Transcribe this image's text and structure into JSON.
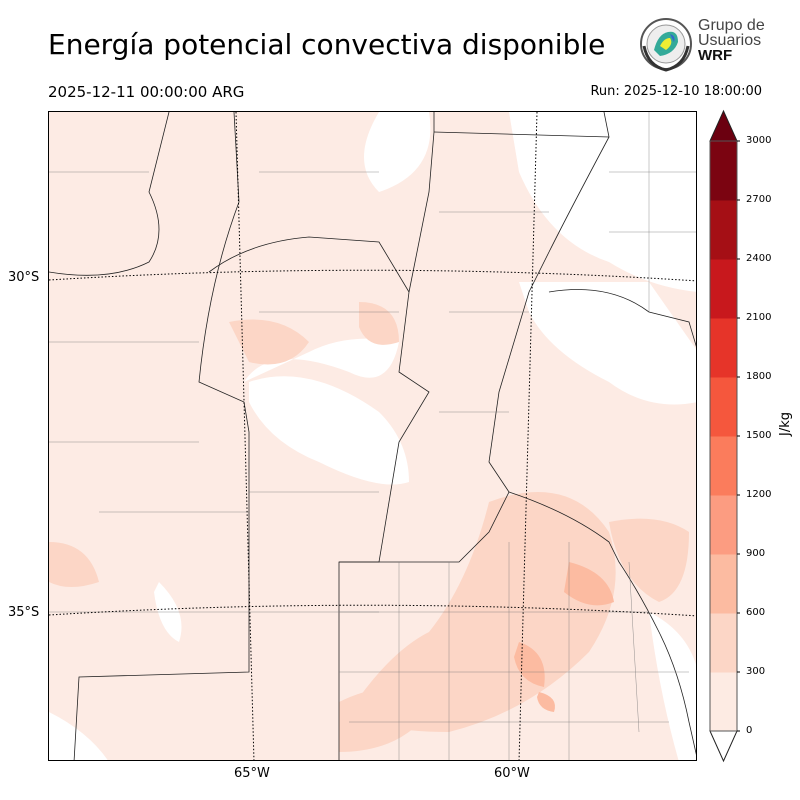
{
  "title": "Energía potencial convectiva disponible",
  "valid_time": "2025-12-11 00:00:00 ARG",
  "run_time": "Run: 2025-12-10 18:00:00",
  "logo": {
    "line1": "Grupo de",
    "line2": "Usuarios",
    "line3": "WRF"
  },
  "map": {
    "lat_labels": [
      "30°S",
      "35°S"
    ],
    "lon_labels": [
      "65°W",
      "60°W"
    ]
  },
  "colorbar": {
    "unit": "J/kg",
    "levels": [
      "0",
      "300",
      "600",
      "900",
      "1200",
      "1500",
      "1800",
      "2100",
      "2400",
      "2700",
      "3000"
    ],
    "colors": [
      "#fdebe3",
      "#fcd6c6",
      "#fcbba1",
      "#fc9c81",
      "#fb7c5c",
      "#f5573d",
      "#e63429",
      "#c8181d",
      "#a50f15",
      "#7b0411"
    ],
    "over_color": "#6b0010",
    "under_color": "#ffffff"
  }
}
